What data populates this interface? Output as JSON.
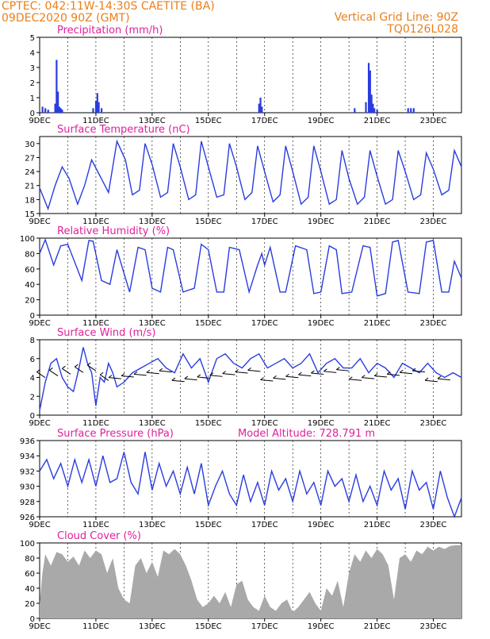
{
  "header": {
    "line1_left": "CPTEC:   042:11W-14:30S   CAETITE (BA)",
    "line2_left": "09DEC2020 90Z (GMT)",
    "line1_right": "Vertical Grid Line: 90Z",
    "line2_right": "TQ0126L028",
    "model_altitude": "Model Altitude: 728.791 m"
  },
  "colors": {
    "line": "#2a3ce0",
    "title": "#e0209a",
    "header": "#e8801a",
    "cloud": "#a9a9a9"
  },
  "x_tick_labels": [
    "9DEC",
    "11DEC",
    "13DEC",
    "15DEC",
    "17DEC",
    "19DEC",
    "21DEC",
    "23DEC"
  ],
  "chart_data": [
    {
      "id": "precip",
      "type": "bar",
      "title": "Precipitation (mm/h)",
      "ylim": [
        0,
        5
      ],
      "yticks": [
        "0",
        "1",
        "2",
        "3",
        "4",
        "5"
      ],
      "x": [
        9.1,
        9.2,
        9.3,
        9.55,
        9.6,
        9.65,
        9.7,
        9.75,
        9.8,
        10.9,
        11.0,
        11.05,
        11.1,
        11.2,
        16.8,
        16.85,
        16.9,
        20.2,
        20.6,
        20.7,
        20.75,
        20.8,
        20.85,
        20.9,
        21.0,
        22.1,
        22.2,
        22.3
      ],
      "values": [
        0.4,
        0.3,
        0.2,
        0.6,
        3.5,
        1.4,
        0.4,
        0.3,
        0.2,
        0.3,
        0.8,
        1.3,
        0.7,
        0.3,
        0.6,
        1.0,
        0.4,
        0.3,
        0.7,
        3.3,
        2.8,
        1.2,
        0.6,
        0.3,
        0.2,
        0.3,
        0.3,
        0.3
      ]
    },
    {
      "id": "temp",
      "type": "line",
      "title": "Surface Temperature (nC)",
      "ylim": [
        15,
        31.5
      ],
      "yticks": [
        "15",
        "18",
        "21",
        "24",
        "27",
        "30"
      ],
      "x": [
        9.0,
        9.3,
        9.55,
        9.8,
        10.05,
        10.35,
        10.6,
        10.85,
        11.15,
        11.45,
        11.75,
        12.05,
        12.3,
        12.55,
        12.75,
        13.0,
        13.3,
        13.55,
        13.75,
        14.0,
        14.3,
        14.55,
        14.75,
        15.0,
        15.3,
        15.55,
        15.75,
        16.0,
        16.3,
        16.55,
        16.75,
        17.0,
        17.3,
        17.55,
        17.75,
        18.0,
        18.3,
        18.55,
        18.75,
        19.0,
        19.3,
        19.55,
        19.75,
        20.0,
        20.3,
        20.55,
        20.75,
        21.0,
        21.3,
        21.55,
        21.75,
        22.0,
        22.3,
        22.55,
        22.75,
        23.0,
        23.3,
        23.55,
        23.75,
        24.0
      ],
      "values": [
        20.5,
        16.0,
        21.0,
        25.0,
        22.5,
        17.0,
        21.0,
        26.5,
        23.0,
        19.5,
        30.5,
        26.5,
        19.0,
        20.0,
        30.0,
        25.5,
        18.5,
        19.5,
        30.0,
        25.0,
        18.0,
        19.0,
        30.5,
        25.0,
        18.5,
        19.0,
        30.0,
        25.0,
        18.0,
        19.5,
        29.5,
        24.0,
        17.5,
        19.0,
        29.5,
        24.0,
        17.0,
        18.5,
        29.5,
        24.0,
        17.0,
        18.0,
        28.5,
        22.5,
        17.0,
        18.5,
        28.5,
        23.0,
        17.0,
        18.0,
        28.5,
        24.0,
        18.0,
        19.0,
        28.0,
        24.5,
        19.0,
        20.0,
        28.5,
        25.0
      ]
    },
    {
      "id": "rh",
      "type": "line",
      "title": "Relative Humidity (%)",
      "ylim": [
        0,
        100
      ],
      "yticks": [
        "0",
        "20",
        "40",
        "60",
        "80",
        "100"
      ],
      "x": [
        9.0,
        9.2,
        9.5,
        9.75,
        10.0,
        10.5,
        10.75,
        10.9,
        11.2,
        11.5,
        11.75,
        12.2,
        12.5,
        12.75,
        13.0,
        13.3,
        13.55,
        13.75,
        14.1,
        14.5,
        14.75,
        15.0,
        15.3,
        15.55,
        15.75,
        16.1,
        16.45,
        16.75,
        16.9,
        17.0,
        17.2,
        17.55,
        17.75,
        18.1,
        18.5,
        18.75,
        19.0,
        19.3,
        19.55,
        19.75,
        20.1,
        20.5,
        20.75,
        21.0,
        21.3,
        21.55,
        21.75,
        22.1,
        22.5,
        22.75,
        23.0,
        23.3,
        23.55,
        23.75,
        24.0
      ],
      "values": [
        80,
        98,
        65,
        90,
        92,
        45,
        97,
        96,
        45,
        40,
        85,
        30,
        88,
        85,
        35,
        30,
        88,
        85,
        30,
        35,
        92,
        85,
        30,
        30,
        88,
        85,
        30,
        65,
        80,
        65,
        88,
        30,
        30,
        90,
        85,
        28,
        30,
        90,
        85,
        28,
        30,
        90,
        88,
        25,
        28,
        95,
        97,
        30,
        28,
        95,
        97,
        30,
        30,
        70,
        48
      ]
    },
    {
      "id": "wind",
      "type": "line",
      "title": "Surface Wind (m/s)",
      "ylim": [
        0,
        8
      ],
      "yticks": [
        "0",
        "2",
        "4",
        "6",
        "8"
      ],
      "x": [
        9.0,
        9.2,
        9.4,
        9.6,
        9.8,
        10.0,
        10.2,
        10.4,
        10.55,
        10.7,
        10.85,
        11.0,
        11.15,
        11.3,
        11.45,
        11.6,
        11.75,
        12.0,
        12.3,
        12.6,
        12.9,
        13.2,
        13.5,
        13.8,
        14.1,
        14.4,
        14.7,
        15.0,
        15.3,
        15.6,
        15.9,
        16.2,
        16.5,
        16.8,
        17.1,
        17.4,
        17.7,
        18.0,
        18.3,
        18.6,
        18.9,
        19.2,
        19.5,
        19.8,
        20.1,
        20.4,
        20.7,
        21.0,
        21.3,
        21.6,
        21.9,
        22.2,
        22.5,
        22.8,
        23.1,
        23.4,
        23.7,
        24.0
      ],
      "values": [
        0.5,
        3.5,
        5.5,
        6.0,
        4.0,
        3.0,
        2.5,
        5.0,
        7.2,
        5.5,
        4.5,
        1.0,
        4.0,
        3.5,
        5.5,
        4.5,
        3.0,
        3.5,
        4.5,
        5.0,
        5.5,
        6.0,
        5.0,
        4.5,
        6.5,
        5.0,
        6.0,
        3.5,
        6.0,
        6.5,
        5.5,
        5.0,
        6.0,
        6.5,
        5.0,
        5.5,
        6.0,
        5.0,
        5.5,
        6.5,
        4.5,
        5.5,
        6.0,
        5.0,
        5.0,
        6.0,
        4.5,
        5.5,
        5.0,
        4.0,
        5.5,
        5.0,
        4.5,
        5.5,
        4.5,
        4.0,
        4.5,
        4.0
      ]
    },
    {
      "id": "press",
      "type": "line",
      "title": "Surface Pressure (hPa)",
      "ylim": [
        926,
        936
      ],
      "yticks": [
        "926",
        "928",
        "930",
        "932",
        "934",
        "936"
      ],
      "x": [
        9.0,
        9.25,
        9.5,
        9.75,
        10.0,
        10.25,
        10.5,
        10.75,
        11.0,
        11.25,
        11.5,
        11.75,
        12.0,
        12.25,
        12.5,
        12.75,
        13.0,
        13.25,
        13.5,
        13.75,
        14.0,
        14.25,
        14.5,
        14.75,
        15.0,
        15.25,
        15.5,
        15.75,
        16.0,
        16.25,
        16.5,
        16.75,
        17.0,
        17.25,
        17.5,
        17.75,
        18.0,
        18.25,
        18.5,
        18.75,
        19.0,
        19.25,
        19.5,
        19.75,
        20.0,
        20.25,
        20.5,
        20.75,
        21.0,
        21.25,
        21.5,
        21.75,
        22.0,
        22.25,
        22.5,
        22.75,
        23.0,
        23.25,
        23.5,
        23.75,
        24.0
      ],
      "values": [
        932,
        933.5,
        931,
        933,
        930,
        933.5,
        930.5,
        933.5,
        930,
        934,
        930.5,
        931,
        934.5,
        930.5,
        929,
        934.5,
        929.5,
        933,
        930,
        932,
        929,
        932.5,
        929,
        933,
        927.5,
        930,
        932,
        929,
        927.5,
        931.5,
        928,
        930.5,
        927.5,
        932,
        929.5,
        931,
        928,
        932,
        929,
        930.5,
        927.5,
        932,
        930,
        931,
        928,
        931.5,
        928,
        930,
        927.5,
        932,
        929.5,
        931,
        927,
        932,
        929.5,
        930.5,
        927,
        932,
        928.5,
        926,
        928.5
      ]
    },
    {
      "id": "cloud",
      "type": "area",
      "title": "Cloud Cover (%)",
      "ylim": [
        0,
        100
      ],
      "yticks": [
        "0",
        "20",
        "40",
        "60",
        "80",
        "100"
      ],
      "x": [
        9.0,
        9.1,
        9.2,
        9.4,
        9.6,
        9.8,
        10.0,
        10.2,
        10.4,
        10.6,
        10.8,
        11.0,
        11.2,
        11.4,
        11.6,
        11.8,
        12.0,
        12.2,
        12.4,
        12.6,
        12.8,
        13.0,
        13.2,
        13.4,
        13.6,
        13.8,
        14.0,
        14.2,
        14.4,
        14.6,
        14.8,
        15.0,
        15.2,
        15.4,
        15.6,
        15.8,
        16.0,
        16.2,
        16.4,
        16.6,
        16.8,
        17.0,
        17.2,
        17.4,
        17.6,
        17.8,
        18.0,
        18.2,
        18.4,
        18.6,
        18.8,
        19.0,
        19.2,
        19.4,
        19.6,
        19.8,
        20.0,
        20.2,
        20.4,
        20.6,
        20.8,
        21.0,
        21.2,
        21.4,
        21.6,
        21.8,
        22.0,
        22.2,
        22.4,
        22.6,
        22.8,
        23.0,
        23.2,
        23.4,
        23.6,
        23.8,
        24.0
      ],
      "values": [
        20,
        60,
        85,
        70,
        88,
        85,
        75,
        82,
        70,
        90,
        80,
        90,
        85,
        60,
        80,
        40,
        25,
        20,
        70,
        80,
        60,
        75,
        55,
        90,
        85,
        92,
        85,
        70,
        50,
        25,
        15,
        20,
        30,
        20,
        35,
        15,
        45,
        50,
        25,
        15,
        10,
        30,
        15,
        10,
        20,
        25,
        8,
        15,
        25,
        35,
        20,
        10,
        40,
        30,
        50,
        15,
        60,
        85,
        75,
        90,
        80,
        92,
        85,
        70,
        25,
        80,
        85,
        75,
        90,
        85,
        95,
        90,
        95,
        92,
        96,
        97,
        97
      ]
    }
  ]
}
